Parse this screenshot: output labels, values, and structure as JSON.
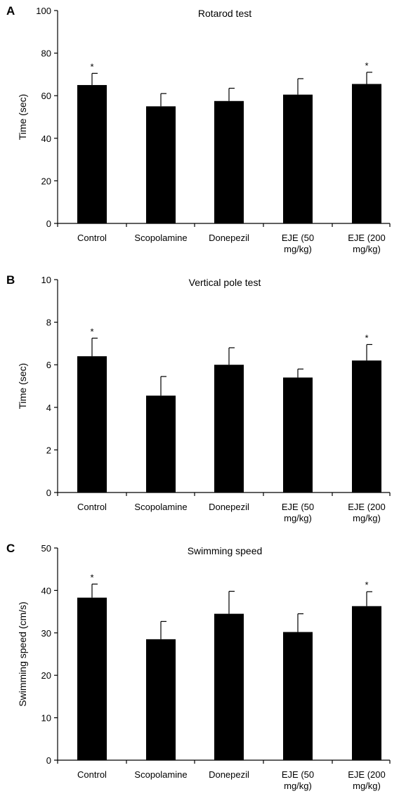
{
  "chart_data": [
    {
      "type": "bar",
      "panel_label": "A",
      "title": "Rotarod test",
      "xlabel": "",
      "ylabel": "Time (sec)",
      "ylim": [
        0,
        100
      ],
      "yticks": [
        "0",
        "20",
        "40",
        "60",
        "80",
        "100"
      ],
      "categories": [
        [
          "Control"
        ],
        [
          "Scopolamine"
        ],
        [
          "Donepezil"
        ],
        [
          "EJE (50",
          "mg/kg)"
        ],
        [
          "EJE (200",
          "mg/kg)"
        ]
      ],
      "values": [
        65,
        55,
        57.5,
        60.5,
        65.5
      ],
      "errors": [
        5.5,
        6,
        6,
        7.5,
        5.5
      ],
      "significance": [
        "*",
        "",
        "",
        "",
        "*"
      ],
      "bar_color": "#000000",
      "grid": false
    },
    {
      "type": "bar",
      "panel_label": "B",
      "title": "Vertical pole test",
      "xlabel": "",
      "ylabel": "Time (sec)",
      "ylim": [
        0,
        10
      ],
      "yticks": [
        "0",
        "2",
        "4",
        "6",
        "8",
        "10"
      ],
      "categories": [
        [
          "Control"
        ],
        [
          "Scopolamine"
        ],
        [
          "Donepezil"
        ],
        [
          "EJE (50",
          "mg/kg)"
        ],
        [
          "EJE (200",
          "mg/kg)"
        ]
      ],
      "values": [
        6.4,
        4.55,
        6.0,
        5.4,
        6.2
      ],
      "errors": [
        0.85,
        0.9,
        0.8,
        0.4,
        0.75
      ],
      "significance": [
        "*",
        "",
        "",
        "",
        "*"
      ],
      "bar_color": "#000000",
      "grid": false
    },
    {
      "type": "bar",
      "panel_label": "C",
      "title": "Swimming speed",
      "xlabel": "",
      "ylabel": "Swimming speed (cm/s)",
      "ylim": [
        0,
        50
      ],
      "yticks": [
        "0",
        "10",
        "20",
        "30",
        "40",
        "50"
      ],
      "categories": [
        [
          "Control"
        ],
        [
          "Scopolamine"
        ],
        [
          "Donepezil"
        ],
        [
          "EJE (50",
          "mg/kg)"
        ],
        [
          "EJE (200",
          "mg/kg)"
        ]
      ],
      "values": [
        38.3,
        28.5,
        34.5,
        30.2,
        36.3
      ],
      "errors": [
        3.2,
        4.2,
        5.3,
        4.3,
        3.4
      ],
      "significance": [
        "*",
        "",
        "",
        "",
        "*"
      ],
      "bar_color": "#000000",
      "grid": false
    }
  ]
}
